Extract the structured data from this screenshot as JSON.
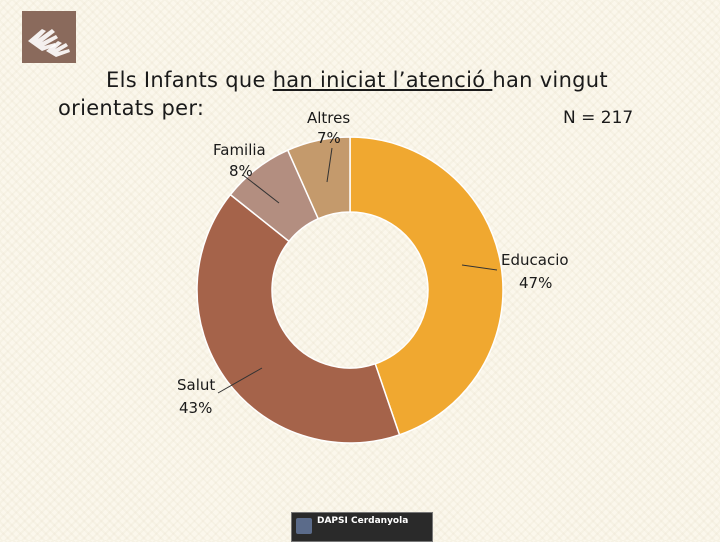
{
  "title": {
    "line1_before": "Els Infants que ",
    "line1_underlined": "han iniciat l’atenció ",
    "line1_after": "han vingut",
    "line2": "orientats per:"
  },
  "n_label": "N = 217",
  "logo": {
    "icon": "hands-icon",
    "bg_color": "#8a6a5c"
  },
  "footer_logo": {
    "name": "DAPSI Cerdanyola"
  },
  "chart_data": {
    "type": "pie",
    "donut": true,
    "slices": [
      {
        "name": "Educacio",
        "label": "Educacio",
        "percent_label": "47%",
        "value": 47,
        "color": "#f0a830"
      },
      {
        "name": "Salut",
        "label": "Salut",
        "percent_label": "43%",
        "value": 43,
        "color": "#a5634a"
      },
      {
        "name": "Familia",
        "label": "Familia",
        "percent_label": "8%",
        "value": 8,
        "color": "#b38e80"
      },
      {
        "name": "Altres",
        "label": "Altres",
        "percent_label": "7%",
        "value": 7,
        "color": "#c49a6c"
      }
    ],
    "legend": "none"
  }
}
